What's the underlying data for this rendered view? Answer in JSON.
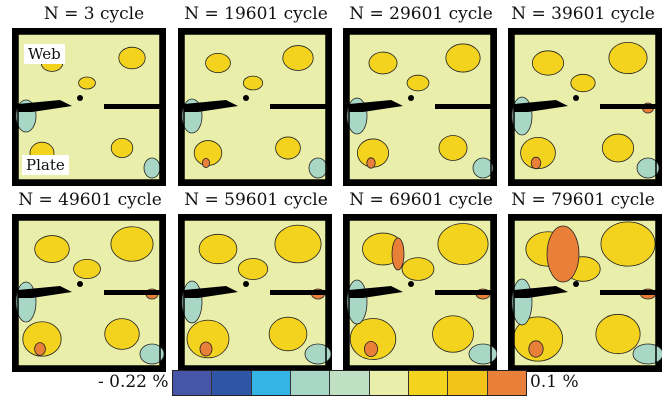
{
  "panels": [
    {
      "title": "N = 3 cycle",
      "level": 0
    },
    {
      "title": "N = 19601 cycle",
      "level": 1
    },
    {
      "title": "N = 29601 cycle",
      "level": 2
    },
    {
      "title": "N = 39601 cycle",
      "level": 3
    },
    {
      "title": "N = 49601 cycle",
      "level": 4
    },
    {
      "title": "N = 59601 cycle",
      "level": 5
    },
    {
      "title": "N = 69601 cycle",
      "level": 6
    },
    {
      "title": "N = 79601 cycle",
      "level": 7
    }
  ],
  "labels": {
    "web": "Web",
    "plate": "Plate"
  },
  "scale": {
    "min_label": "- 0.22 %",
    "max_label": "0.1 %",
    "colors": [
      "#4655a8",
      "#2f56a6",
      "#35b5e6",
      "#a9d7c6",
      "#bfe0c2",
      "#e9eeaa",
      "#f4d31e",
      "#f2c41a",
      "#e9803a"
    ]
  },
  "colors": {
    "background_green": "#e9eeaa",
    "yellow": "#f4d31e",
    "orange": "#e9803a",
    "light_teal": "#a9d7c6",
    "frame": "#000000"
  }
}
